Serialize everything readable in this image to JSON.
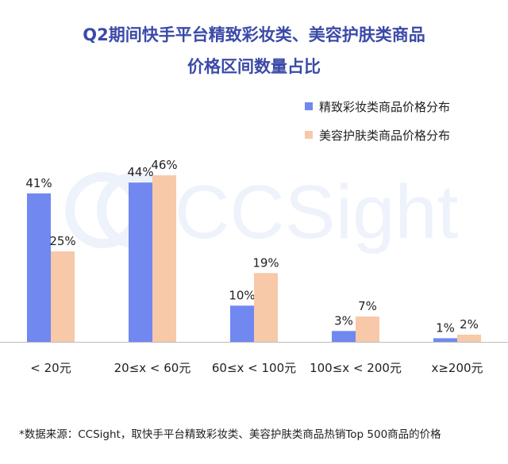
{
  "title_lines": [
    "Q2期间快手平台精致彩妆类、美容护肤类商品",
    "价格区间数量占比"
  ],
  "watermark": "CCSight",
  "footnote": "*数据来源：CCSight，取快手平台精致彩妆类、美容护肤类商品热销Top 500商品的价格",
  "colors": {
    "title": "#3b4aa8",
    "series1": "#7088f0",
    "series2": "#f7c9a8",
    "baseline": "#bbbbbb",
    "watermark": "#eef2fb"
  },
  "chart_data": {
    "type": "bar",
    "categories": [
      "< 20元",
      "20≤x < 60元",
      "60≤x < 100元",
      "100≤x < 200元",
      "x≥200元"
    ],
    "series": [
      {
        "name": "精致彩妆类商品价格分布",
        "values": [
          41,
          44,
          10,
          3,
          1
        ],
        "labels": [
          "41%",
          "44%",
          "10%",
          "3%",
          "1%"
        ]
      },
      {
        "name": "美容护肤类商品价格分布",
        "values": [
          25,
          46,
          19,
          7,
          2
        ],
        "labels": [
          "25%",
          "46%",
          "19%",
          "7%",
          "2%"
        ]
      }
    ],
    "ylim": [
      0,
      46
    ],
    "legend_position": "top-right",
    "grid": false
  }
}
